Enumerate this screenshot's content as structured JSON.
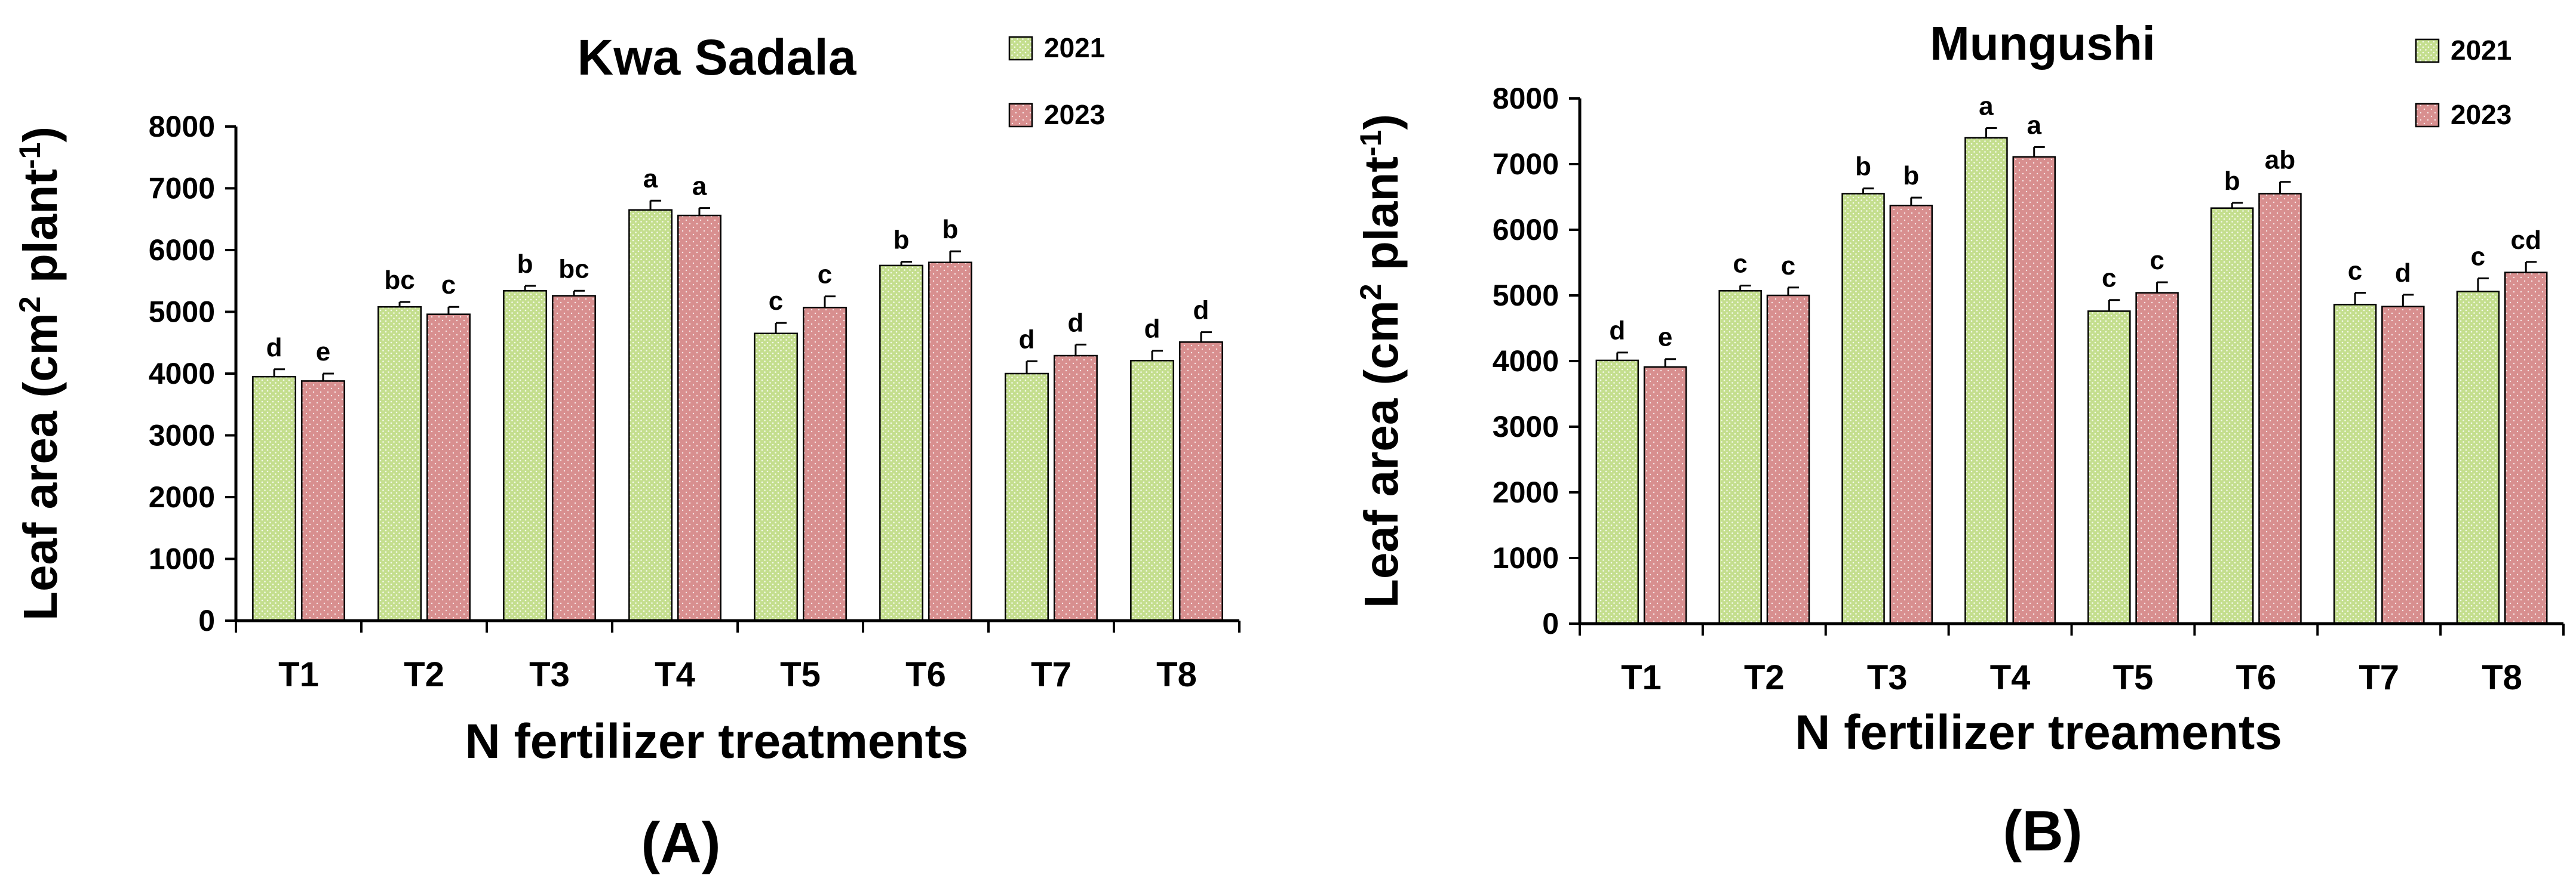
{
  "chart_data": [
    {
      "panel_label": "(A)",
      "type": "bar",
      "title": "Kwa Sadala",
      "xlabel": "N fertilizer treatments",
      "ylabel": "Leaf area (cm² plant⁻¹)",
      "ylabel_parts": {
        "main": "Leaf area (cm",
        "sup1": "2",
        "mid": " plant",
        "sup2": "-1",
        "end": ")"
      },
      "ylim": [
        0,
        8000
      ],
      "yticks": [
        "0",
        "1000",
        "2000",
        "3000",
        "4000",
        "5000",
        "6000",
        "7000",
        "8000"
      ],
      "categories": [
        "T1",
        "T2",
        "T3",
        "T4",
        "T5",
        "T6",
        "T7",
        "T8"
      ],
      "series": [
        {
          "name": "2021",
          "values": [
            3950,
            5080,
            5340,
            6650,
            4650,
            5750,
            4000,
            4210
          ],
          "errors": [
            120,
            80,
            80,
            150,
            170,
            60,
            200,
            160
          ],
          "letters": [
            "d",
            "bc",
            "b",
            "a",
            "c",
            "b",
            "d",
            "d"
          ]
        },
        {
          "name": "2023",
          "values": [
            3880,
            4960,
            5260,
            6560,
            5070,
            5800,
            4290,
            4510
          ],
          "errors": [
            120,
            120,
            80,
            120,
            180,
            180,
            180,
            160
          ],
          "letters": [
            "e",
            "c",
            "bc",
            "a",
            "c",
            "b",
            "d",
            "d"
          ]
        }
      ],
      "grid": false,
      "legend": "top-right"
    },
    {
      "panel_label": "(B)",
      "type": "bar",
      "title": "Mungushi",
      "xlabel": "N fertilizer treaments",
      "ylabel": "Leaf area (cm² plant⁻¹)",
      "ylabel_parts": {
        "main": "Leaf area (cm",
        "sup1": "2",
        "mid": " plant",
        "sup2": "-1",
        "end": ")"
      },
      "ylim": [
        0,
        8000
      ],
      "yticks": [
        "0",
        "1000",
        "2000",
        "3000",
        "4000",
        "5000",
        "6000",
        "7000",
        "8000"
      ],
      "categories": [
        "T1",
        "T2",
        "T3",
        "T4",
        "T5",
        "T6",
        "T7",
        "T8"
      ],
      "series": [
        {
          "name": "2021",
          "values": [
            4010,
            5070,
            6550,
            7400,
            4760,
            6330,
            4860,
            5060
          ],
          "errors": [
            120,
            80,
            80,
            150,
            170,
            80,
            180,
            200
          ],
          "letters": [
            "d",
            "c",
            "b",
            "a",
            "c",
            "b",
            "c",
            "c"
          ]
        },
        {
          "name": "2023",
          "values": [
            3910,
            5000,
            6370,
            7110,
            5040,
            6550,
            4830,
            5350
          ],
          "errors": [
            120,
            120,
            120,
            150,
            160,
            180,
            180,
            160
          ],
          "letters": [
            "e",
            "c",
            "b",
            "a",
            "c",
            "ab",
            "d",
            "cd"
          ]
        }
      ],
      "grid": false,
      "legend": "top-right"
    }
  ]
}
